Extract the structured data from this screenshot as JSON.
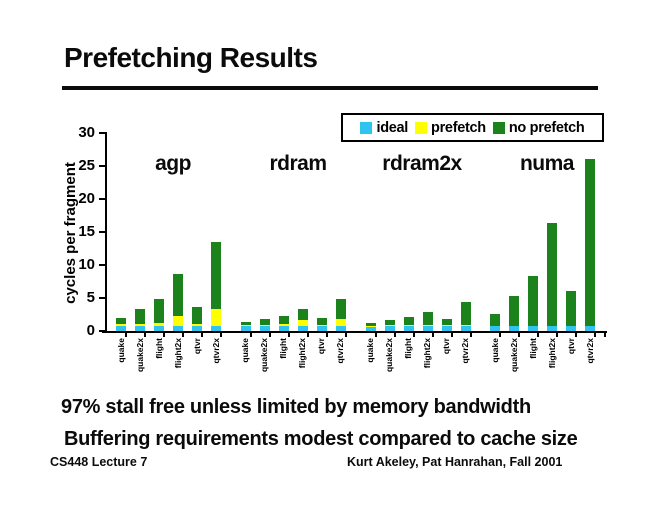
{
  "slide": {
    "title": "Prefetching Results",
    "bullets": [
      "97% stall free unless limited by memory bandwidth",
      "Buffering requirements modest compared to cache size"
    ],
    "footer_left": "CS448 Lecture 7",
    "footer_right": "Kurt Akeley, Pat Hanrahan, Fall 2001"
  },
  "chart_data": {
    "type": "bar",
    "stacked": true,
    "ylabel": "cycles per fragment",
    "ylim": [
      0,
      30
    ],
    "yticks": [
      0,
      5,
      10,
      15,
      20,
      25,
      30
    ],
    "grid": false,
    "legend_position": "top-right",
    "groups": [
      "agp",
      "rdram",
      "rdram2x",
      "numa"
    ],
    "categories": [
      "quake",
      "quake2x",
      "flight",
      "flight2x",
      "qtvr",
      "qtvr2x"
    ],
    "legend": [
      {
        "label": "ideal",
        "color": "#2FC3EF"
      },
      {
        "label": "prefetch",
        "color": "#FFFF00"
      },
      {
        "label": "no prefetch",
        "color": "#1C831C"
      }
    ],
    "colors": {
      "ideal": "#2FC3EF",
      "prefetch": "#FFFF00",
      "no_prefetch": "#1C831C"
    },
    "stack_order": [
      "ideal",
      "prefetch",
      "no_prefetch"
    ],
    "values": {
      "agp": {
        "ideal": [
          0.75,
          0.75,
          0.75,
          0.75,
          0.75,
          0.75
        ],
        "prefetch": [
          0.25,
          0.35,
          0.45,
          1.55,
          0.25,
          2.65
        ],
        "no_prefetch": [
          0.9,
          2.2,
          3.6,
          6.3,
          2.6,
          10.1
        ],
        "totals": [
          1.9,
          3.3,
          4.8,
          8.6,
          3.6,
          13.5
        ]
      },
      "rdram": {
        "ideal": [
          0.75,
          0.75,
          0.75,
          0.75,
          0.75,
          0.75
        ],
        "prefetch": [
          0.1,
          0.2,
          0.25,
          0.9,
          0.2,
          1.0
        ],
        "no_prefetch": [
          0.45,
          0.85,
          1.3,
          1.75,
          0.95,
          3.05
        ],
        "totals": [
          1.3,
          1.8,
          2.3,
          3.4,
          1.9,
          4.8
        ]
      },
      "rdram2x": {
        "ideal": [
          0.75,
          0.75,
          0.75,
          0.75,
          0.75,
          0.75
        ],
        "prefetch": [
          0.05,
          0.1,
          0.1,
          0.15,
          0.1,
          0.2
        ],
        "no_prefetch": [
          0.4,
          0.75,
          1.25,
          2.0,
          0.95,
          3.45
        ],
        "totals": [
          1.2,
          1.6,
          2.1,
          2.9,
          1.8,
          4.4
        ]
      },
      "numa": {
        "ideal": [
          0.75,
          0.75,
          0.75,
          0.75,
          0.75,
          0.75
        ],
        "prefetch": [
          0,
          0,
          0,
          0,
          0,
          0
        ],
        "no_prefetch": [
          1.85,
          4.55,
          7.55,
          15.55,
          5.25,
          25.25
        ],
        "totals": [
          2.6,
          5.3,
          8.3,
          16.3,
          6.0,
          26.0
        ]
      }
    }
  }
}
